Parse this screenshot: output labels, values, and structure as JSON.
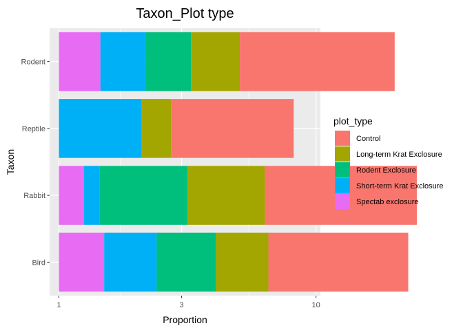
{
  "chart_data": {
    "type": "bar",
    "orientation": "horizontal",
    "stacked": true,
    "title": "Taxon_Plot type",
    "xlabel": "Proportion",
    "ylabel": "Taxon",
    "x_scale": "log10",
    "xlim": [
      0.92,
      10.4
    ],
    "x_ticks": [
      {
        "value": 1,
        "label": "1"
      },
      {
        "value": 3,
        "label": "3"
      },
      {
        "value": 10,
        "label": "10"
      }
    ],
    "grid": true,
    "legend_position": "right",
    "legend_title": "plot_type",
    "categories": [
      "Rodent",
      "Reptile",
      "Rabbit",
      "Bird"
    ],
    "series": [
      {
        "name": "Control",
        "color": "#F8766D",
        "values": [
          4.0,
          3.0,
          3.9,
          3.5
        ]
      },
      {
        "name": "Long-term Krat Exclosure",
        "color": "#A3A500",
        "values": [
          1.55,
          1.3,
          2.0,
          1.6
        ]
      },
      {
        "name": "Rodent Exclosure",
        "color": "#00BF7D",
        "values": [
          1.5,
          1.0,
          2.2,
          1.7
        ]
      },
      {
        "name": "Short-term Krat Exclosure",
        "color": "#00B0F6",
        "values": [
          1.5,
          2.1,
          1.15,
          1.6
        ]
      },
      {
        "name": "Spectab exclosure",
        "color": "#E76BF3",
        "values": [
          1.45,
          0,
          1.25,
          1.5
        ]
      }
    ]
  }
}
